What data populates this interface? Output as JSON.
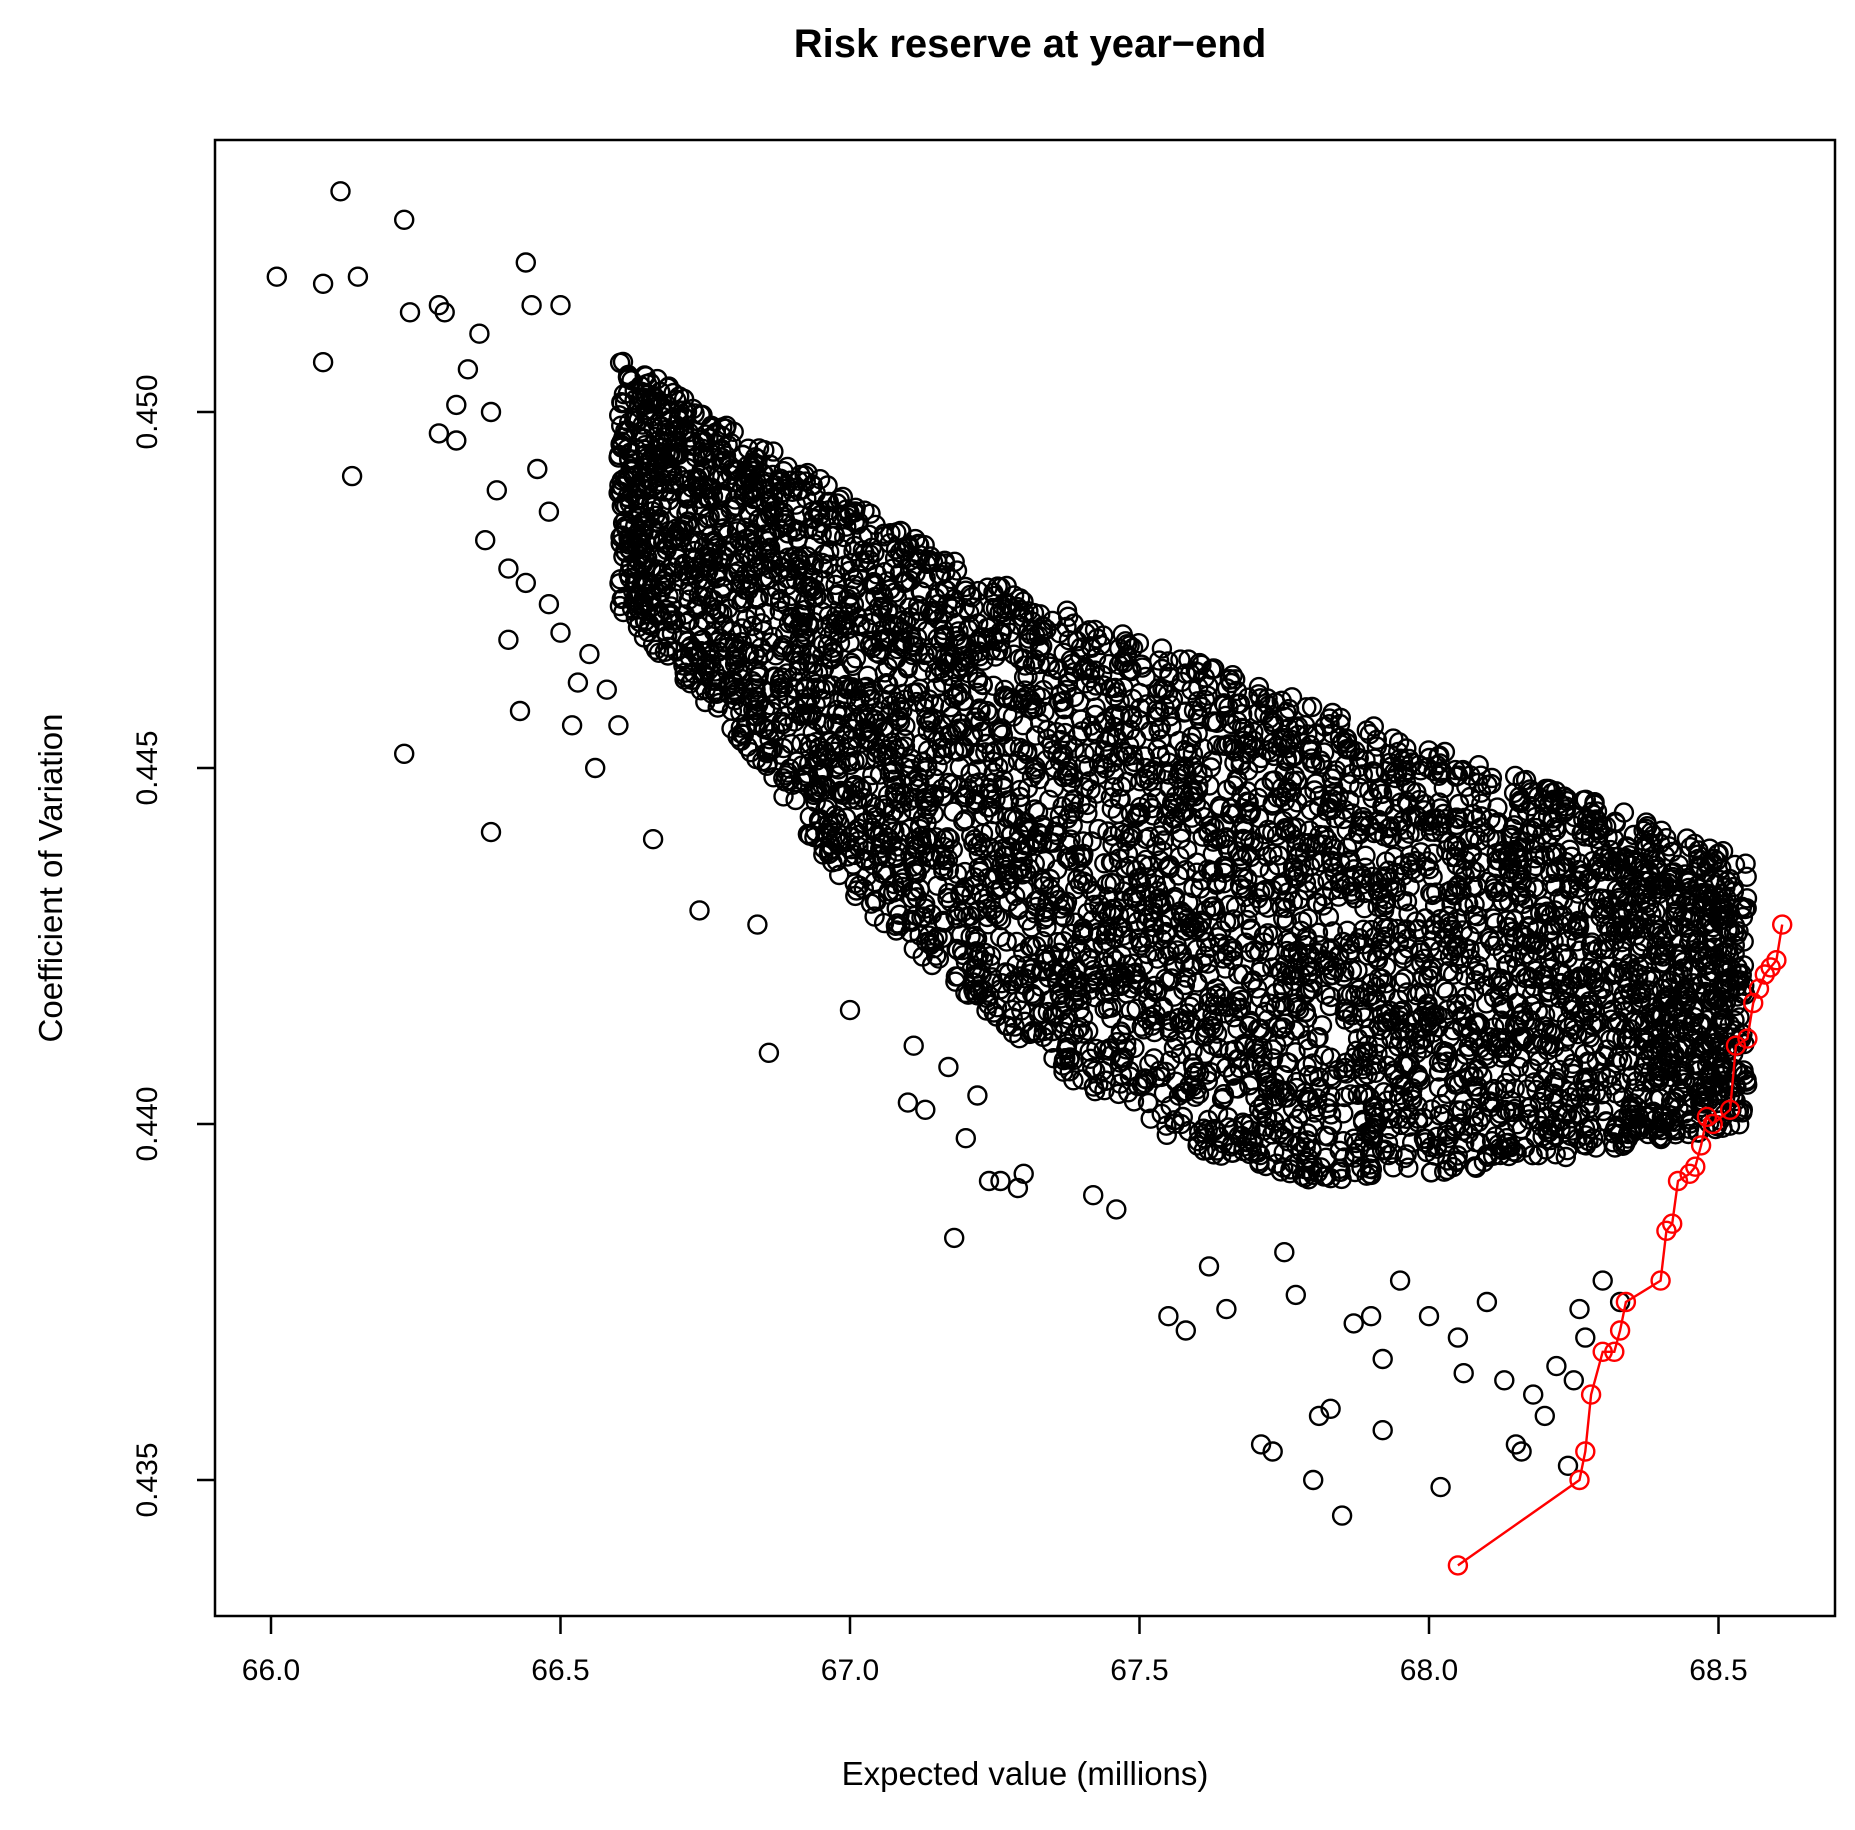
{
  "chart_data": {
    "type": "scatter",
    "title": "Risk reserve at year−end",
    "xlabel": "Expected value (millions)",
    "ylabel": "Coefficient of Variation",
    "xlim": [
      65.9,
      68.7
    ],
    "ylim": [
      0.4325,
      0.4545
    ],
    "x_ticks": [
      "66.0",
      "66.5",
      "67.0",
      "67.5",
      "68.0",
      "68.5"
    ],
    "y_ticks": [
      "0.435",
      "0.440",
      "0.445",
      "0.450"
    ],
    "grid": false,
    "legend": "none",
    "colors": {
      "points": "#000000",
      "frontier": "#ff0000"
    },
    "cloud_boundary": {
      "upper": [
        [
          66.6,
          0.4508
        ],
        [
          66.7,
          0.4503
        ],
        [
          67.0,
          0.4488
        ],
        [
          67.2,
          0.4478
        ],
        [
          67.5,
          0.4468
        ],
        [
          68.0,
          0.4453
        ],
        [
          68.3,
          0.4445
        ],
        [
          68.55,
          0.4437
        ]
      ],
      "lower": [
        [
          66.6,
          0.4472
        ],
        [
          66.8,
          0.4455
        ],
        [
          67.0,
          0.4432
        ],
        [
          67.2,
          0.4418
        ],
        [
          67.4,
          0.4405
        ],
        [
          67.6,
          0.4396
        ],
        [
          67.8,
          0.4392
        ],
        [
          68.0,
          0.4393
        ],
        [
          68.3,
          0.4396
        ],
        [
          68.55,
          0.44
        ]
      ]
    },
    "outliers": [
      [
        66.01,
        0.4519
      ],
      [
        66.09,
        0.4518
      ],
      [
        66.12,
        0.4531
      ],
      [
        66.15,
        0.4519
      ],
      [
        66.23,
        0.4527
      ],
      [
        66.09,
        0.4507
      ],
      [
        66.14,
        0.4491
      ],
      [
        66.24,
        0.4514
      ],
      [
        66.29,
        0.4515
      ],
      [
        66.3,
        0.4514
      ],
      [
        66.29,
        0.4497
      ],
      [
        66.32,
        0.4501
      ],
      [
        66.32,
        0.4496
      ],
      [
        66.34,
        0.4506
      ],
      [
        66.36,
        0.4511
      ],
      [
        66.37,
        0.4482
      ],
      [
        66.38,
        0.45
      ],
      [
        66.39,
        0.4489
      ],
      [
        66.41,
        0.4478
      ],
      [
        66.41,
        0.4468
      ],
      [
        66.43,
        0.4458
      ],
      [
        66.44,
        0.4476
      ],
      [
        66.44,
        0.4521
      ],
      [
        66.45,
        0.4515
      ],
      [
        66.46,
        0.4492
      ],
      [
        66.48,
        0.4486
      ],
      [
        66.48,
        0.4473
      ],
      [
        66.5,
        0.4515
      ],
      [
        66.5,
        0.4469
      ],
      [
        66.52,
        0.4456
      ],
      [
        66.53,
        0.4462
      ],
      [
        66.55,
        0.4466
      ],
      [
        66.56,
        0.445
      ],
      [
        66.58,
        0.4461
      ],
      [
        66.6,
        0.4456
      ],
      [
        66.23,
        0.4452
      ],
      [
        66.38,
        0.4441
      ],
      [
        66.66,
        0.444
      ],
      [
        66.74,
        0.443
      ],
      [
        66.84,
        0.4428
      ],
      [
        66.86,
        0.441
      ],
      [
        67.0,
        0.4416
      ],
      [
        67.1,
        0.4403
      ],
      [
        67.11,
        0.4411
      ],
      [
        67.13,
        0.4402
      ],
      [
        67.17,
        0.4408
      ],
      [
        67.18,
        0.4384
      ],
      [
        67.2,
        0.4398
      ],
      [
        67.22,
        0.4404
      ],
      [
        67.24,
        0.4392
      ],
      [
        67.26,
        0.4392
      ],
      [
        67.29,
        0.4391
      ],
      [
        67.3,
        0.4393
      ],
      [
        67.42,
        0.439
      ],
      [
        67.46,
        0.4388
      ],
      [
        67.55,
        0.4373
      ],
      [
        67.58,
        0.4371
      ],
      [
        67.62,
        0.438
      ],
      [
        67.65,
        0.4374
      ],
      [
        67.71,
        0.4355
      ],
      [
        67.73,
        0.4354
      ],
      [
        67.75,
        0.4382
      ],
      [
        67.77,
        0.4376
      ],
      [
        67.8,
        0.435
      ],
      [
        67.81,
        0.4359
      ],
      [
        67.83,
        0.436
      ],
      [
        67.85,
        0.4345
      ],
      [
        67.87,
        0.4372
      ],
      [
        67.9,
        0.4373
      ],
      [
        67.92,
        0.4357
      ],
      [
        67.92,
        0.4367
      ],
      [
        67.95,
        0.4378
      ],
      [
        68.0,
        0.4373
      ],
      [
        68.02,
        0.4349
      ],
      [
        68.05,
        0.437
      ],
      [
        68.06,
        0.4365
      ],
      [
        68.1,
        0.4375
      ],
      [
        68.13,
        0.4364
      ],
      [
        68.15,
        0.4355
      ],
      [
        68.16,
        0.4354
      ],
      [
        68.18,
        0.4362
      ],
      [
        68.2,
        0.4359
      ],
      [
        68.22,
        0.4366
      ],
      [
        68.24,
        0.4352
      ],
      [
        68.25,
        0.4364
      ],
      [
        68.26,
        0.4374
      ],
      [
        68.27,
        0.437
      ],
      [
        68.3,
        0.4378
      ],
      [
        68.33,
        0.4375
      ]
    ],
    "series": [
      {
        "type": "line+points",
        "x": [
          68.05,
          68.26,
          68.27,
          68.28,
          68.3,
          68.32,
          68.33,
          68.34,
          68.4,
          68.41,
          68.42,
          68.43,
          68.45,
          68.46,
          68.47,
          68.48,
          68.49,
          68.52,
          68.53,
          68.55,
          68.56,
          68.57,
          68.58,
          68.59,
          68.6,
          68.61
        ],
        "y": [
          0.4338,
          0.435,
          0.4354,
          0.4362,
          0.4368,
          0.4368,
          0.4371,
          0.4375,
          0.4378,
          0.4385,
          0.4386,
          0.4392,
          0.4393,
          0.4394,
          0.4397,
          0.4401,
          0.44,
          0.4402,
          0.4411,
          0.4412,
          0.4417,
          0.4419,
          0.4421,
          0.4422,
          0.4423,
          0.4428
        ]
      }
    ]
  }
}
